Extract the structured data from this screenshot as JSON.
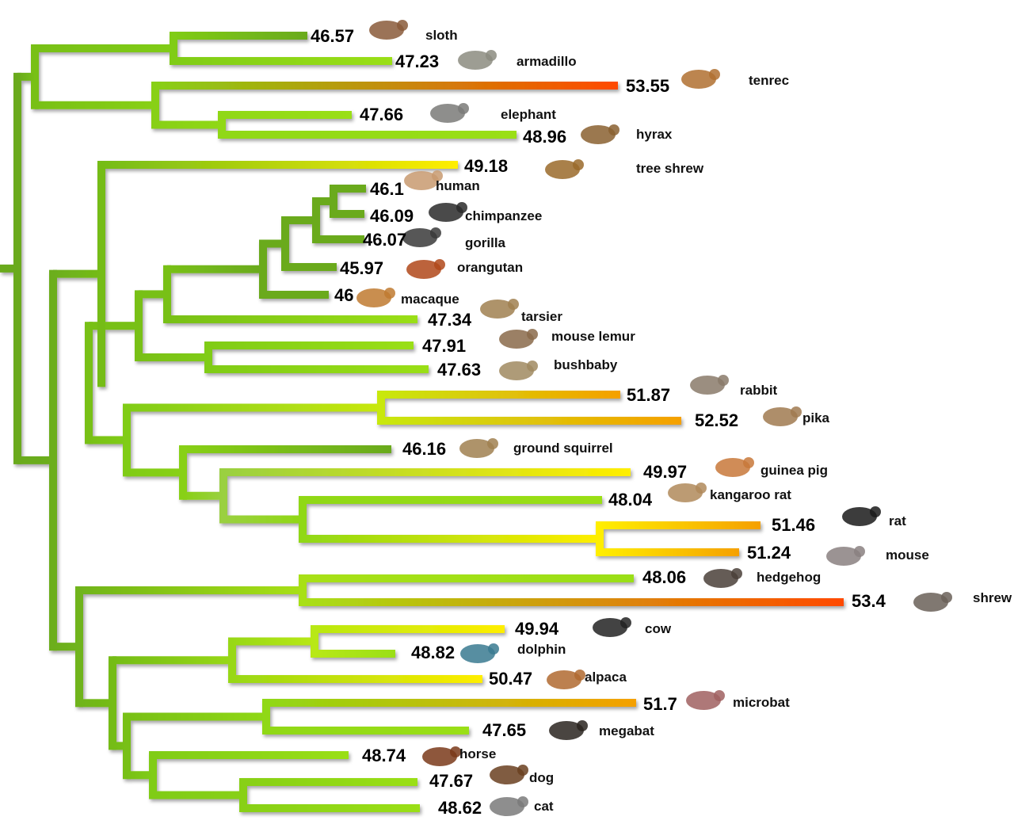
{
  "colors": {
    "low": "#6aaa1e",
    "mid": "#9adf12",
    "high": "#ffee00",
    "higher": "#f5a000",
    "highest": "#ff4a00"
  },
  "taxa": [
    {
      "name": "sloth",
      "value": "46.57",
      "icon": "sloth-icon"
    },
    {
      "name": "armadillo",
      "value": "47.23",
      "icon": "armadillo-icon"
    },
    {
      "name": "tenrec",
      "value": "53.55",
      "icon": "tenrec-icon"
    },
    {
      "name": "elephant",
      "value": "47.66",
      "icon": "elephant-icon"
    },
    {
      "name": "hyrax",
      "value": "48.96",
      "icon": "hyrax-icon"
    },
    {
      "name": "tree shrew",
      "value": "49.18",
      "icon": "tree-shrew-icon"
    },
    {
      "name": "human",
      "value": "46.1",
      "icon": "human-icon"
    },
    {
      "name": "chimpanzee",
      "value": "46.09",
      "icon": "chimpanzee-icon"
    },
    {
      "name": "gorilla",
      "value": "46.07",
      "icon": "gorilla-icon"
    },
    {
      "name": "orangutan",
      "value": "45.97",
      "icon": "orangutan-icon"
    },
    {
      "name": "macaque",
      "value": "46",
      "icon": "macaque-icon"
    },
    {
      "name": "tarsier",
      "value": "47.34",
      "icon": "tarsier-icon"
    },
    {
      "name": "mouse lemur",
      "value": "47.91",
      "icon": "mouse-lemur-icon"
    },
    {
      "name": "bushbaby",
      "value": "47.63",
      "icon": "bushbaby-icon"
    },
    {
      "name": "rabbit",
      "value": "51.87",
      "icon": "rabbit-icon"
    },
    {
      "name": "pika",
      "value": "52.52",
      "icon": "pika-icon"
    },
    {
      "name": "ground squirrel",
      "value": "46.16",
      "icon": "ground-squirrel-icon"
    },
    {
      "name": "guinea pig",
      "value": "49.97",
      "icon": "guinea-pig-icon"
    },
    {
      "name": "kangaroo rat",
      "value": "48.04",
      "icon": "kangaroo-rat-icon"
    },
    {
      "name": "rat",
      "value": "51.46",
      "icon": "rat-icon"
    },
    {
      "name": "mouse",
      "value": "51.24",
      "icon": "mouse-icon"
    },
    {
      "name": "hedgehog",
      "value": "48.06",
      "icon": "hedgehog-icon"
    },
    {
      "name": "shrew",
      "value": "53.4",
      "icon": "shrew-icon"
    },
    {
      "name": "cow",
      "value": "49.94",
      "icon": "cow-icon"
    },
    {
      "name": "dolphin",
      "value": "48.82",
      "icon": "dolphin-icon"
    },
    {
      "name": "alpaca",
      "value": "50.47",
      "icon": "alpaca-icon"
    },
    {
      "name": "microbat",
      "value": "51.7",
      "icon": "microbat-icon"
    },
    {
      "name": "megabat",
      "value": "47.65",
      "icon": "megabat-icon"
    },
    {
      "name": "horse",
      "value": "48.74",
      "icon": "horse-icon"
    },
    {
      "name": "dog",
      "value": "47.67",
      "icon": "dog-icon"
    },
    {
      "name": "cat",
      "value": "48.62",
      "icon": "cat-icon"
    }
  ]
}
